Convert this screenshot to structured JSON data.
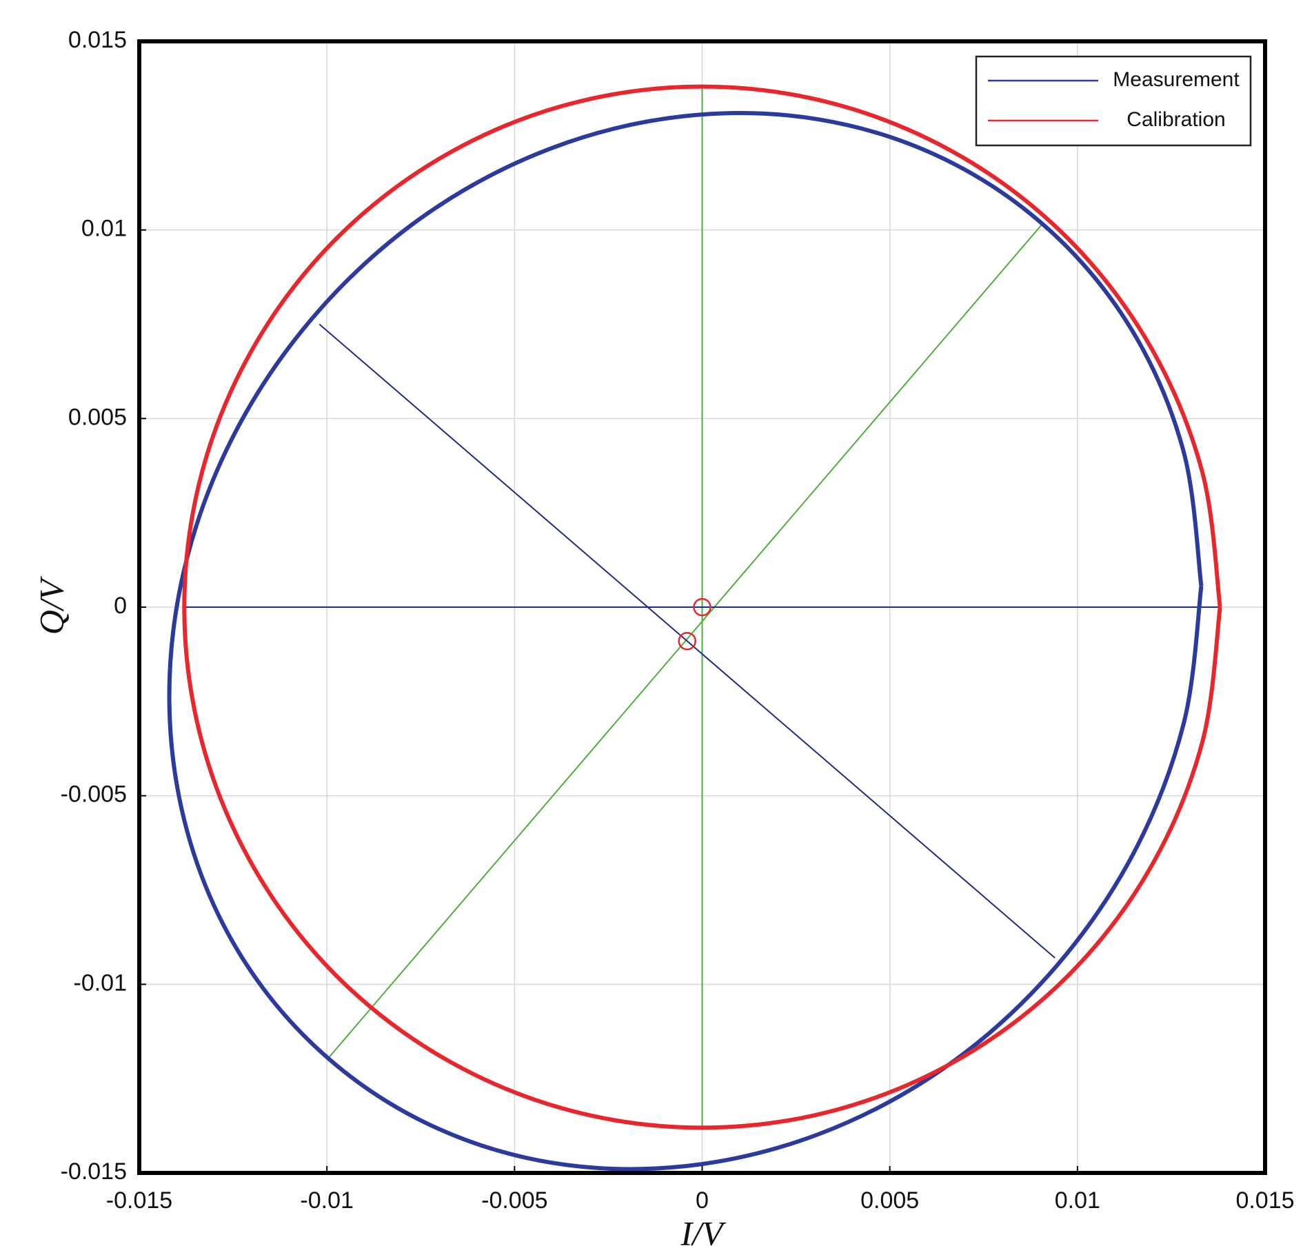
{
  "chart_data": {
    "type": "line",
    "xlabel": "I/V",
    "ylabel": "Q/V",
    "xlim": [
      -0.015,
      0.015
    ],
    "ylim": [
      -0.015,
      0.015
    ],
    "xticks": [
      -0.015,
      -0.01,
      -0.005,
      0,
      0.005,
      0.01,
      0.015
    ],
    "yticks": [
      -0.015,
      -0.01,
      -0.005,
      0,
      0.005,
      0.01,
      0.015
    ],
    "grid": true,
    "legend": "upper right",
    "series": [
      {
        "name": "Measurement",
        "color": "#2b3a9c",
        "x": [
          0.0133,
          0.01283,
          0.01146,
          0.00927,
          0.00643,
          0.00311,
          -0.00045,
          -0.00401,
          -0.00733,
          -0.01017,
          -0.01236,
          -0.01373,
          -0.0142,
          -0.01373,
          -0.01236,
          -0.01017,
          -0.00733,
          -0.00401,
          -0.00045,
          0.00311,
          0.00643,
          0.00927,
          0.01146,
          0.01283,
          0.0133
        ],
        "y": [
          0.00056,
          0.00412,
          0.00733,
          0.00998,
          0.01189,
          0.01293,
          0.01302,
          0.01217,
          0.01043,
          0.00791,
          0.00479,
          0.00129,
          -0.00236,
          -0.00592,
          -0.00913,
          -0.01178,
          -0.01369,
          -0.01473,
          -0.01482,
          -0.01397,
          -0.01223,
          -0.00971,
          -0.00659,
          -0.00309,
          0.00056
        ]
      },
      {
        "name": "Calibration",
        "color": "#e8262b",
        "x": [
          0.0138,
          0.01333,
          0.01195,
          0.00976,
          0.0069,
          0.00357,
          0,
          -0.00357,
          -0.0069,
          -0.00976,
          -0.01195,
          -0.01333,
          -0.0138,
          -0.01333,
          -0.01195,
          -0.00976,
          -0.0069,
          -0.00357,
          0,
          0.00357,
          0.0069,
          0.00976,
          0.01195,
          0.01333,
          0.0138
        ],
        "y": [
          0,
          0.00357,
          0.0069,
          0.00976,
          0.01195,
          0.01333,
          0.0138,
          0.01333,
          0.01195,
          0.00976,
          0.0069,
          0.00357,
          0,
          -0.00357,
          -0.0069,
          -0.00976,
          -0.01195,
          -0.01333,
          -0.0138,
          -0.01333,
          -0.01195,
          -0.00976,
          -0.0069,
          -0.00357,
          0
        ]
      }
    ],
    "lines": [
      {
        "color": "#4caf3a",
        "x": [
          0,
          0
        ],
        "y": [
          0.0138,
          -0.0138
        ]
      },
      {
        "color": "#4caf3a",
        "x": [
          -0.01,
          0.0091
        ],
        "y": [
          -0.012,
          0.0102
        ]
      },
      {
        "color": "#1c2a8a",
        "x": [
          -0.0102,
          0.0094
        ],
        "y": [
          0.0075,
          -0.0093
        ]
      },
      {
        "color": "#1c2a8a",
        "x": [
          -0.0138,
          0.0138
        ],
        "y": [
          0,
          0
        ]
      }
    ],
    "markers": {
      "color": "#e8262b",
      "x": [
        0,
        -0.0004
      ],
      "y": [
        0,
        -0.0009
      ]
    }
  }
}
